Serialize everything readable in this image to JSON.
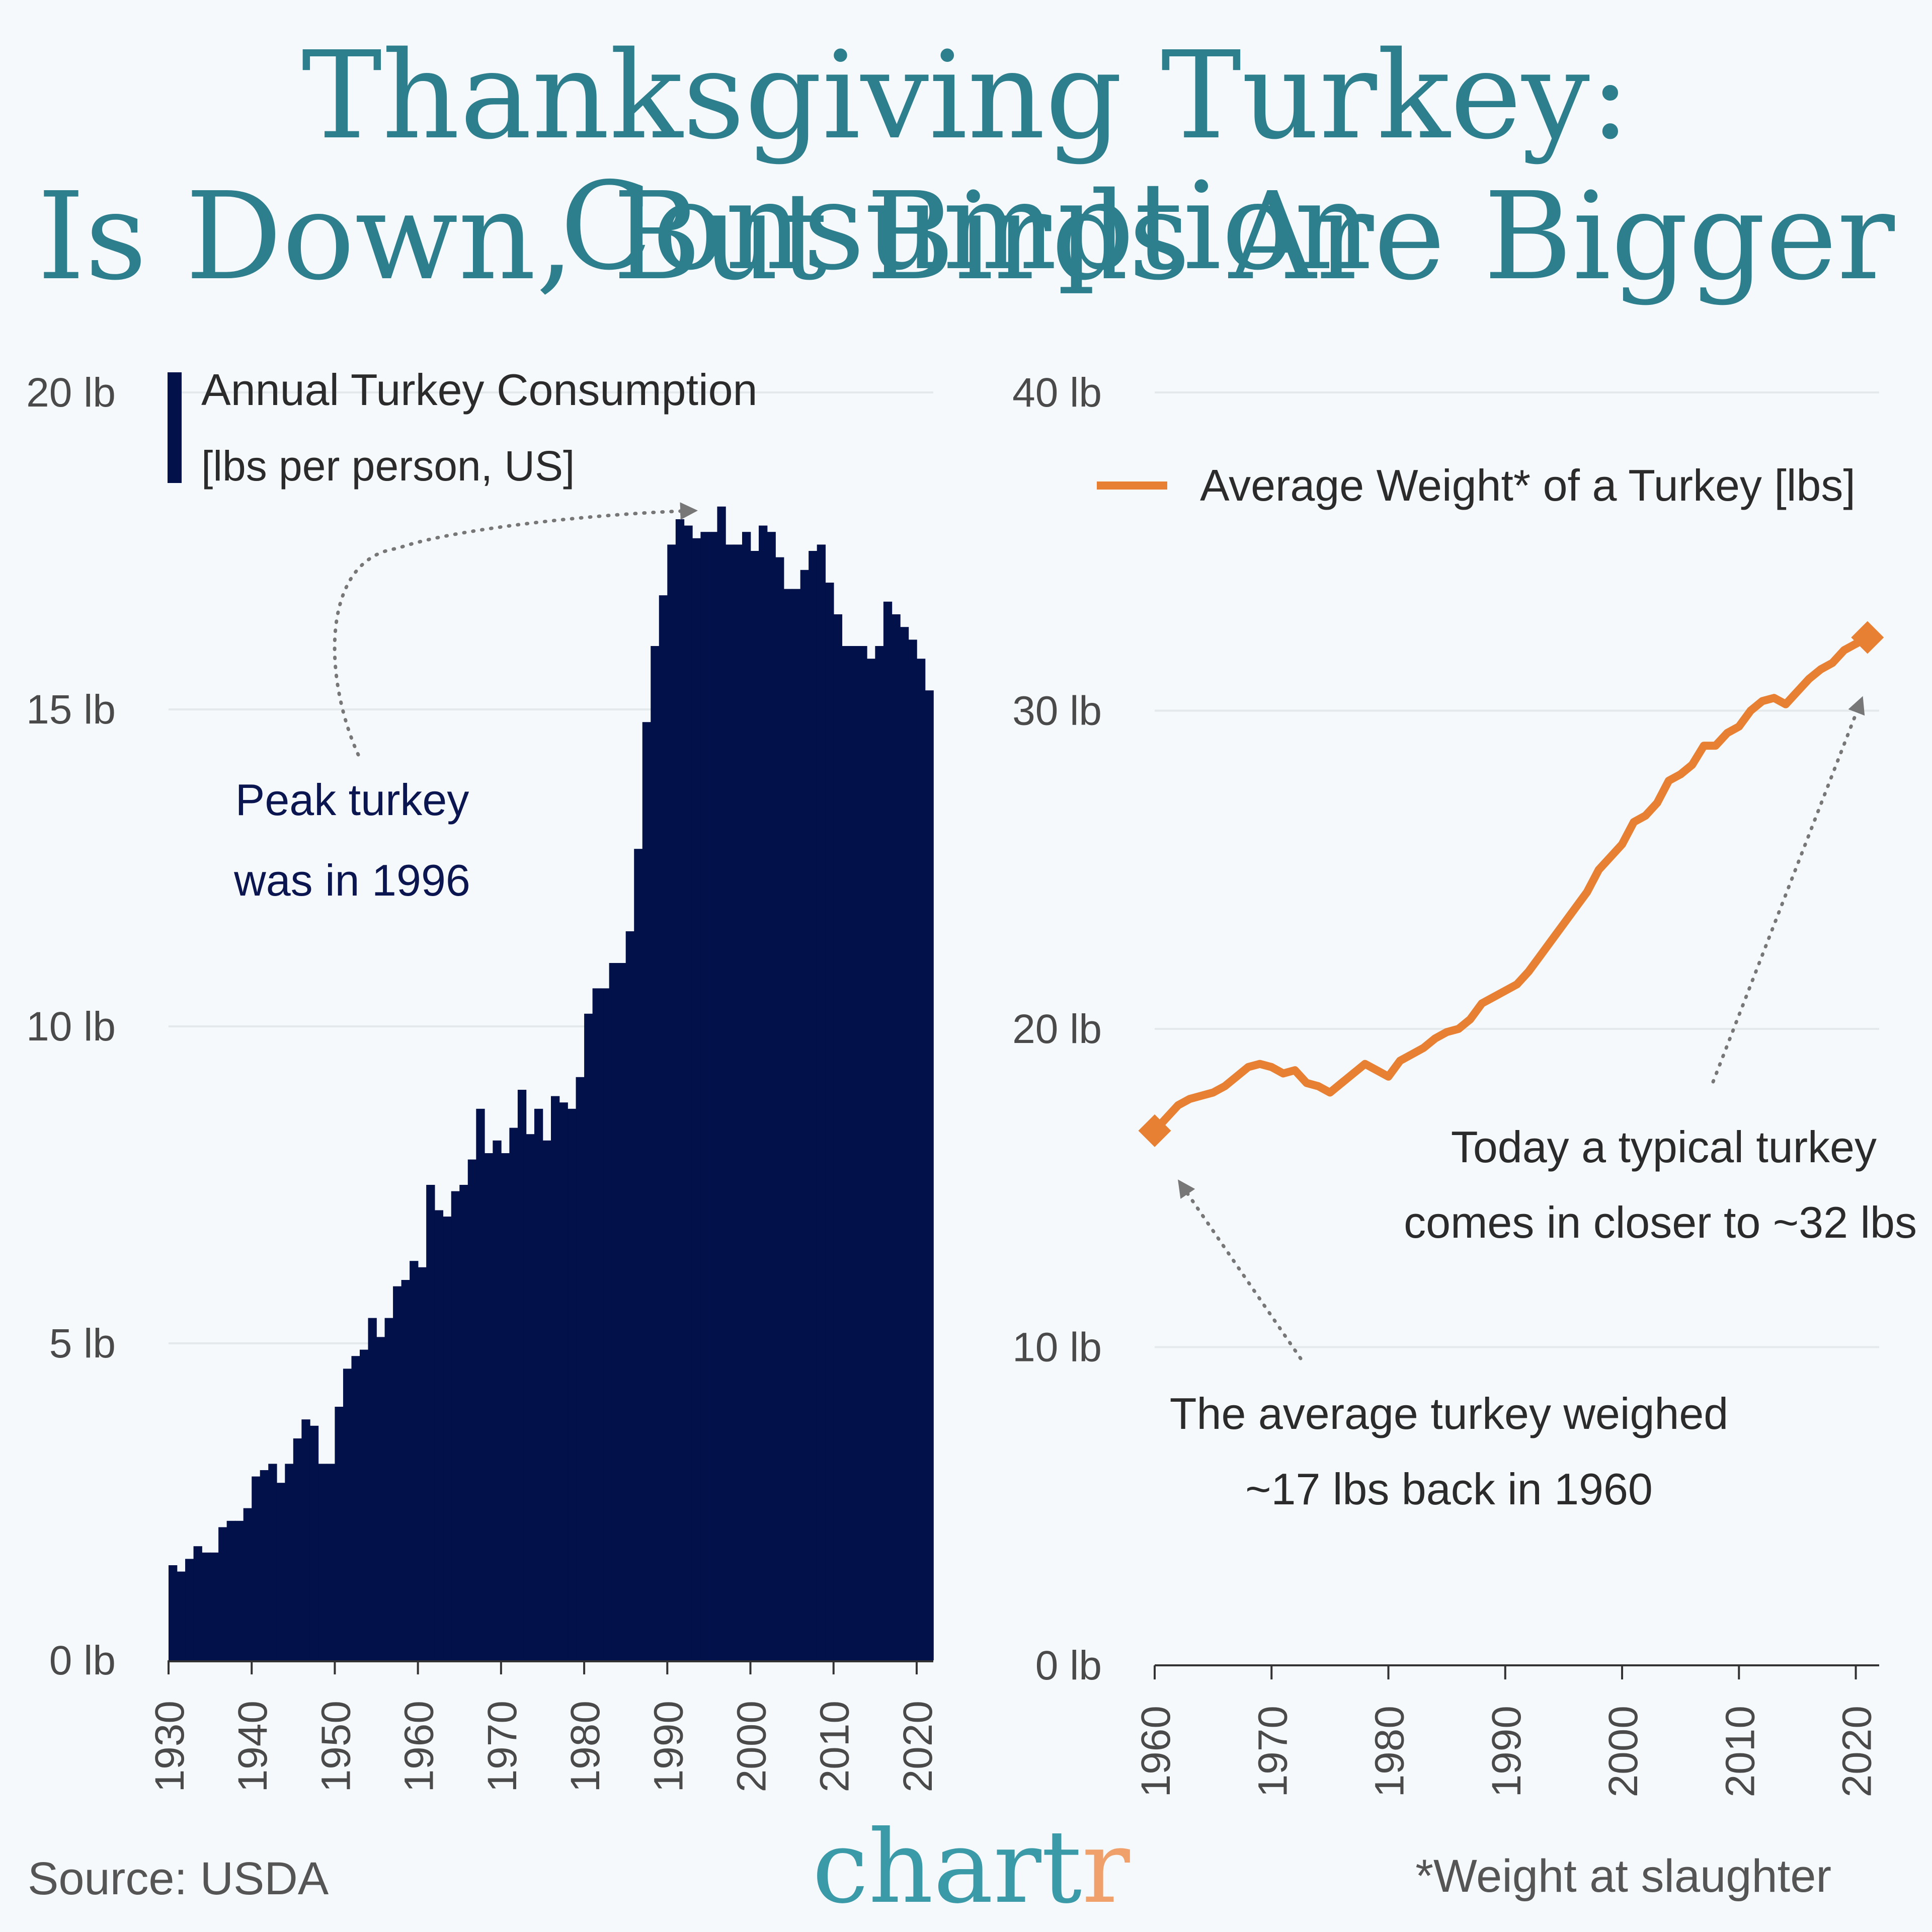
{
  "title": {
    "line1": "Thanksgiving Turkey: Consumption",
    "line2": "Is Down, But Birds Are Bigger"
  },
  "colors": {
    "bar": "#03114b",
    "line": "#e88033",
    "title": "#2e7f8e",
    "brand": "#3a9aa8",
    "brand_accent": "#f0a06a"
  },
  "chart_data": [
    {
      "type": "bar",
      "legend": {
        "line1": "Annual Turkey Consumption",
        "line2": "[lbs per person, US]"
      },
      "ylim": [
        0,
        20
      ],
      "yticks": [
        0,
        5,
        10,
        15,
        20
      ],
      "ytick_labels": [
        "0 lb",
        "5 lb",
        "10 lb",
        "15 lb",
        "20 lb"
      ],
      "xlim": [
        1930,
        2022
      ],
      "xticks": [
        "1930",
        "1940",
        "1950",
        "1960",
        "1970",
        "1980",
        "1990",
        "2000",
        "2010",
        "2020"
      ],
      "x": [
        1930,
        1931,
        1932,
        1933,
        1934,
        1935,
        1936,
        1937,
        1938,
        1939,
        1940,
        1941,
        1942,
        1943,
        1944,
        1945,
        1946,
        1947,
        1948,
        1949,
        1950,
        1951,
        1952,
        1953,
        1954,
        1955,
        1956,
        1957,
        1958,
        1959,
        1960,
        1961,
        1962,
        1963,
        1964,
        1965,
        1966,
        1967,
        1968,
        1969,
        1970,
        1971,
        1972,
        1973,
        1974,
        1975,
        1976,
        1977,
        1978,
        1979,
        1980,
        1981,
        1982,
        1983,
        1984,
        1985,
        1986,
        1987,
        1988,
        1989,
        1990,
        1991,
        1992,
        1993,
        1994,
        1995,
        1996,
        1997,
        1998,
        1999,
        2000,
        2001,
        2002,
        2003,
        2004,
        2005,
        2006,
        2007,
        2008,
        2009,
        2010,
        2011,
        2012,
        2013,
        2014,
        2015,
        2016,
        2017,
        2018,
        2019,
        2020,
        2021
      ],
      "values": [
        1.5,
        1.4,
        1.6,
        1.8,
        1.7,
        1.7,
        2.1,
        2.2,
        2.2,
        2.4,
        2.9,
        3.0,
        3.1,
        2.8,
        3.1,
        3.5,
        3.8,
        3.7,
        3.1,
        3.1,
        4.0,
        4.6,
        4.8,
        4.9,
        5.4,
        5.1,
        5.4,
        5.9,
        6.0,
        6.3,
        6.2,
        7.5,
        7.1,
        7.0,
        7.4,
        7.5,
        7.9,
        8.7,
        8.0,
        8.2,
        8.0,
        8.4,
        9.0,
        8.3,
        8.7,
        8.2,
        8.9,
        8.8,
        8.7,
        9.2,
        10.2,
        10.6,
        10.6,
        11.0,
        11.0,
        11.5,
        12.8,
        14.8,
        16.0,
        16.8,
        17.6,
        18.0,
        17.9,
        17.7,
        17.8,
        17.8,
        18.2,
        17.6,
        17.6,
        17.8,
        17.5,
        17.9,
        17.8,
        17.4,
        16.9,
        16.9,
        17.2,
        17.5,
        17.6,
        17.0,
        16.5,
        16.0,
        16.0,
        16.0,
        15.8,
        16.0,
        16.7,
        16.5,
        16.3,
        16.1,
        15.8,
        15.3
      ],
      "annotation": {
        "line1": "Peak turkey",
        "line2": "was in 1996"
      }
    },
    {
      "type": "line",
      "legend": "Average Weight* of a Turkey [lbs]",
      "ylim": [
        0,
        40
      ],
      "yticks": [
        0,
        10,
        20,
        30,
        40
      ],
      "ytick_labels": [
        "0 lb",
        "10 lb",
        "20 lb",
        "30 lb",
        "40 lb"
      ],
      "xlim": [
        1960,
        2022
      ],
      "xticks": [
        "1960",
        "1970",
        "1980",
        "1990",
        "2000",
        "2010",
        "2020"
      ],
      "x": [
        1960,
        1961,
        1962,
        1963,
        1964,
        1965,
        1966,
        1967,
        1968,
        1969,
        1970,
        1971,
        1972,
        1973,
        1974,
        1975,
        1976,
        1977,
        1978,
        1979,
        1980,
        1981,
        1982,
        1983,
        1984,
        1985,
        1986,
        1987,
        1988,
        1989,
        1990,
        1991,
        1992,
        1993,
        1994,
        1995,
        1996,
        1997,
        1998,
        1999,
        2000,
        2001,
        2002,
        2003,
        2004,
        2005,
        2006,
        2007,
        2008,
        2009,
        2010,
        2011,
        2012,
        2013,
        2014,
        2015,
        2016,
        2017,
        2018,
        2019,
        2020,
        2021
      ],
      "values": [
        16.8,
        17.2,
        17.6,
        17.8,
        17.9,
        18.0,
        18.2,
        18.5,
        18.8,
        18.9,
        18.8,
        18.6,
        18.7,
        18.3,
        18.2,
        18.0,
        18.3,
        18.6,
        18.9,
        18.7,
        18.5,
        19.0,
        19.2,
        19.4,
        19.7,
        19.9,
        20.0,
        20.3,
        20.8,
        21.0,
        21.2,
        21.4,
        21.8,
        22.3,
        22.8,
        23.3,
        23.8,
        24.3,
        25.0,
        25.4,
        25.8,
        26.5,
        26.7,
        27.1,
        27.8,
        28.0,
        28.3,
        28.9,
        28.9,
        29.3,
        29.5,
        30.0,
        30.3,
        30.4,
        30.2,
        30.6,
        31.0,
        31.3,
        31.5,
        31.9,
        32.1,
        32.3
      ],
      "annotation_today": {
        "line1": "Today a typical turkey",
        "line2": "comes in closer to ~32 lbs"
      },
      "annotation_1960": {
        "line1": "The average turkey weighed",
        "line2": "~17 lbs back in 1960"
      }
    }
  ],
  "footer": {
    "source": "Source: USDA",
    "brand_main": "chart",
    "brand_end": "r",
    "note": "*Weight at slaughter"
  }
}
